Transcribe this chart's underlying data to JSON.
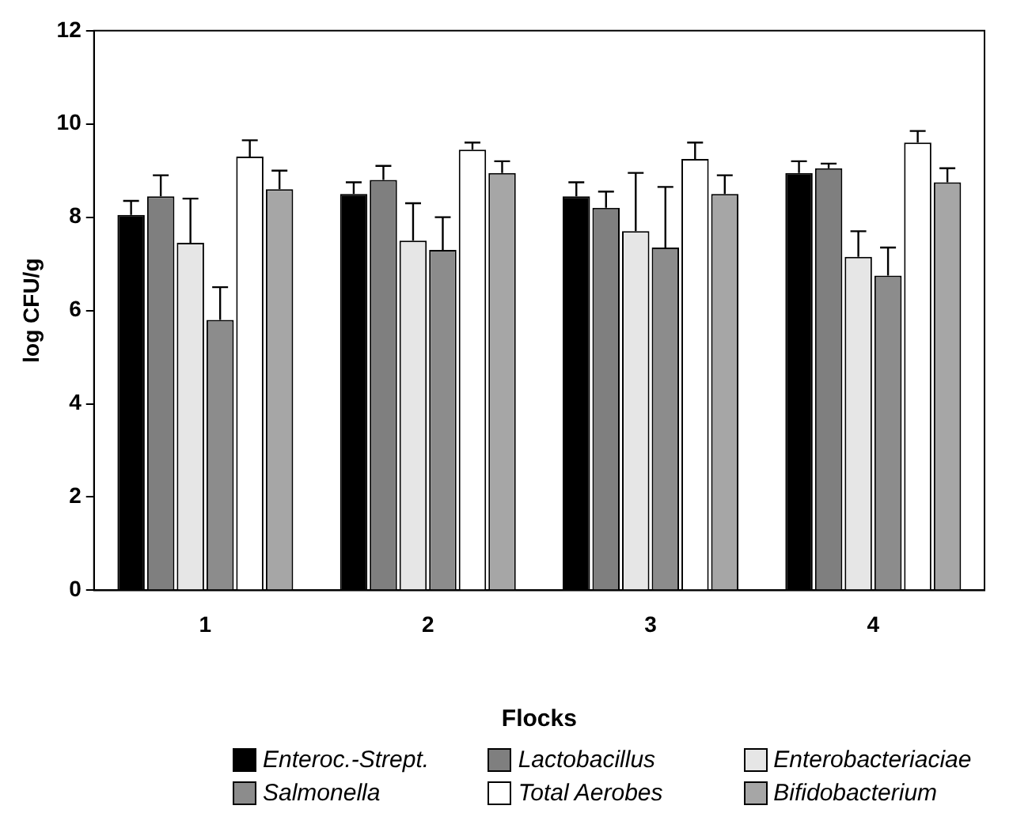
{
  "chart_data": {
    "type": "bar",
    "xlabel": "Flocks",
    "ylabel": "log CFU/g",
    "categories": [
      "1",
      "2",
      "3",
      "4"
    ],
    "series": [
      {
        "name": "Enteroc.-Strept.",
        "color": "#000000",
        "values": [
          8.05,
          8.5,
          8.45,
          8.95
        ],
        "errors": [
          [
            8.05,
            8.35
          ],
          [
            8.5,
            8.75
          ],
          [
            8.45,
            8.75
          ],
          [
            8.95,
            9.2
          ]
        ]
      },
      {
        "name": "Lactobacillus",
        "color": "#7f7f7f",
        "values": [
          8.45,
          8.8,
          8.2,
          9.05
        ],
        "errors": [
          [
            8.45,
            8.9
          ],
          [
            8.8,
            9.1
          ],
          [
            8.2,
            8.55
          ],
          [
            9.05,
            9.15
          ]
        ]
      },
      {
        "name": "Enterobacteriaciae",
        "color": "#e6e6e6",
        "values": [
          7.45,
          7.5,
          7.7,
          7.15
        ],
        "errors": [
          [
            7.45,
            8.4
          ],
          [
            7.5,
            8.3
          ],
          [
            7.7,
            8.95
          ],
          [
            7.15,
            7.7
          ]
        ]
      },
      {
        "name": "Salmonella",
        "color": "#8c8c8c",
        "values": [
          5.8,
          7.3,
          7.35,
          6.75
        ],
        "errors": [
          [
            5.8,
            6.5
          ],
          [
            7.3,
            8.0
          ],
          [
            7.35,
            8.65
          ],
          [
            6.75,
            7.35
          ]
        ]
      },
      {
        "name": "Total Aerobes",
        "color": "#ffffff",
        "values": [
          9.3,
          9.45,
          9.25,
          9.6
        ],
        "errors": [
          [
            9.3,
            9.65
          ],
          [
            9.45,
            9.6
          ],
          [
            9.25,
            9.6
          ],
          [
            9.6,
            9.85
          ]
        ]
      },
      {
        "name": "Bifidobacterium",
        "color": "#a6a6a6",
        "values": [
          8.6,
          8.95,
          8.5,
          8.75
        ],
        "errors": [
          [
            8.6,
            9.0
          ],
          [
            8.95,
            9.2
          ],
          [
            8.5,
            8.9
          ],
          [
            8.75,
            9.05
          ]
        ]
      }
    ],
    "ylim": [
      0,
      12
    ],
    "yticks": [
      0,
      2,
      4,
      6,
      8,
      10,
      12
    ],
    "grid": false,
    "legend": "bottom"
  }
}
